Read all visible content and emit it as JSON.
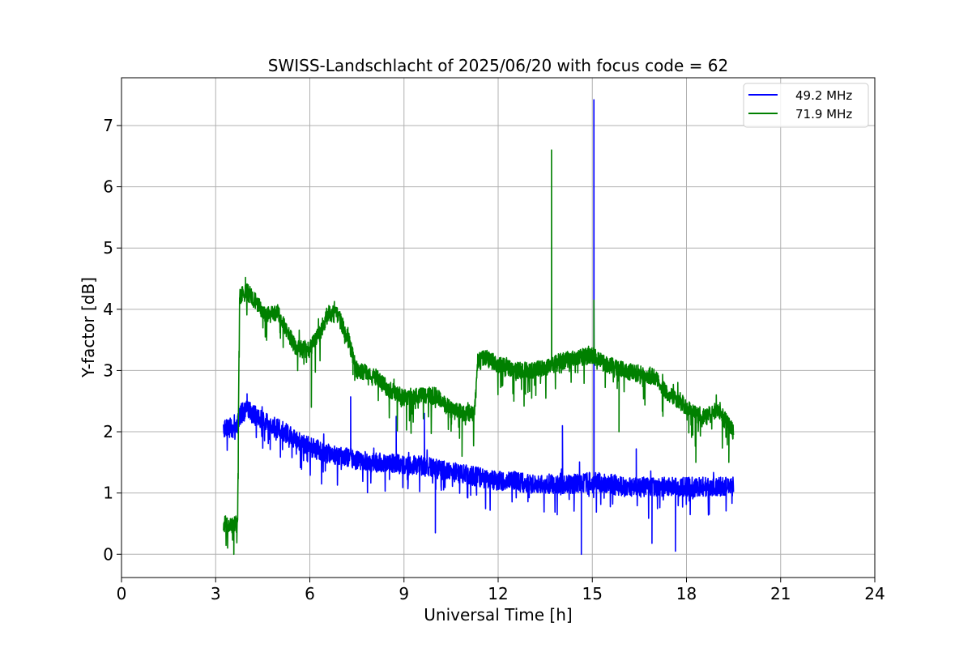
{
  "chart_data": {
    "type": "line",
    "title": "SWISS-Landschlacht of 2025/06/20 with focus code = 62",
    "xlabel": "Universal Time [h]",
    "ylabel": "Y-factor [dB]",
    "xlim": [
      0,
      24
    ],
    "ylim": [
      -0.38,
      7.78
    ],
    "xticks": [
      0,
      3,
      6,
      9,
      12,
      15,
      18,
      21,
      24
    ],
    "yticks": [
      0,
      1,
      2,
      3,
      4,
      5,
      6,
      7
    ],
    "grid": true,
    "legend_position": "top-right",
    "series": [
      {
        "name": "49.2 MHz",
        "color": "#0000ff",
        "x": [
          3.25,
          3.4,
          3.6,
          3.8,
          4.0,
          4.3,
          4.6,
          5.0,
          5.5,
          6.0,
          6.5,
          7.0,
          7.5,
          8.0,
          8.5,
          9.0,
          9.5,
          10.0,
          10.5,
          11.0,
          11.5,
          12.0,
          12.5,
          13.0,
          13.5,
          14.0,
          14.5,
          15.0,
          15.5,
          16.0,
          16.5,
          17.0,
          17.5,
          18.0,
          18.5,
          19.0,
          19.5
        ],
        "y": [
          2.05,
          2.1,
          2.0,
          2.3,
          2.35,
          2.25,
          2.15,
          2.05,
          1.9,
          1.75,
          1.65,
          1.6,
          1.55,
          1.5,
          1.5,
          1.45,
          1.45,
          1.4,
          1.35,
          1.3,
          1.25,
          1.2,
          1.2,
          1.15,
          1.15,
          1.15,
          1.15,
          1.2,
          1.15,
          1.1,
          1.1,
          1.1,
          1.1,
          1.1,
          1.1,
          1.1,
          1.1
        ],
        "spikes": [
          {
            "x": 4.0,
            "y": 2.62
          },
          {
            "x": 7.3,
            "y": 2.57
          },
          {
            "x": 8.75,
            "y": 2.25
          },
          {
            "x": 9.65,
            "y": 2.3
          },
          {
            "x": 14.05,
            "y": 2.1
          },
          {
            "x": 15.05,
            "y": 7.42
          },
          {
            "x": 16.4,
            "y": 1.72
          }
        ],
        "dips": [
          {
            "x": 14.65,
            "y": 0.0
          },
          {
            "x": 17.65,
            "y": 0.05
          },
          {
            "x": 10.0,
            "y": 0.35
          },
          {
            "x": 16.9,
            "y": 0.18
          }
        ]
      },
      {
        "name": "71.9 MHz",
        "color": "#008000",
        "x": [
          3.25,
          3.5,
          3.7,
          3.76,
          4.0,
          4.3,
          4.6,
          5.0,
          5.3,
          5.6,
          6.0,
          6.3,
          6.6,
          6.9,
          7.2,
          7.5,
          8.0,
          8.5,
          9.0,
          9.5,
          10.0,
          10.5,
          11.0,
          11.25,
          11.35,
          11.6,
          12.0,
          12.5,
          13.0,
          13.5,
          14.0,
          14.5,
          15.0,
          15.5,
          16.0,
          16.5,
          17.0,
          17.4,
          17.8,
          18.2,
          18.6,
          19.0,
          19.5
        ],
        "y": [
          0.5,
          0.45,
          0.5,
          4.2,
          4.3,
          4.1,
          3.9,
          3.95,
          3.6,
          3.35,
          3.35,
          3.6,
          3.95,
          3.9,
          3.55,
          3.0,
          2.95,
          2.7,
          2.55,
          2.6,
          2.6,
          2.35,
          2.3,
          2.3,
          3.15,
          3.2,
          3.1,
          3.0,
          3.0,
          3.05,
          3.15,
          3.2,
          3.25,
          3.1,
          3.0,
          2.95,
          2.9,
          2.6,
          2.5,
          2.3,
          2.25,
          2.35,
          2.0
        ],
        "spikes": [
          {
            "x": 3.95,
            "y": 4.52
          },
          {
            "x": 13.7,
            "y": 6.6
          },
          {
            "x": 15.05,
            "y": 4.15
          }
        ],
        "dips": [
          {
            "x": 3.58,
            "y": 0.0
          },
          {
            "x": 6.05,
            "y": 2.4
          },
          {
            "x": 10.85,
            "y": 1.6
          },
          {
            "x": 15.85,
            "y": 2.0
          },
          {
            "x": 18.3,
            "y": 1.5
          },
          {
            "x": 19.35,
            "y": 1.5
          }
        ]
      }
    ]
  }
}
